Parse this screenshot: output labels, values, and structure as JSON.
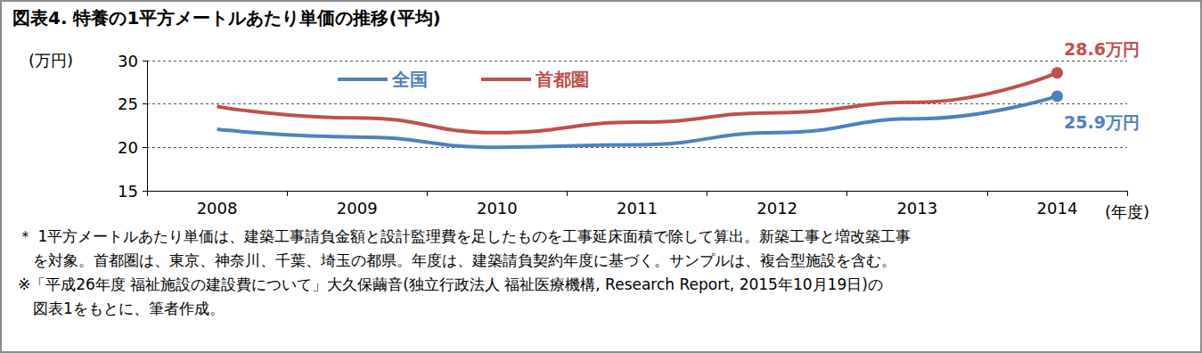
{
  "chart_data": {
    "type": "line",
    "title": "図表4. 特養の1平方メートルあたり単価の推移(平均)",
    "y_label": "(万円)",
    "x_label": "(年度)",
    "categories": [
      "2008",
      "2009",
      "2010",
      "2011",
      "2012",
      "2013",
      "2014"
    ],
    "series": [
      {
        "name": "全国",
        "color": "#4f81bd",
        "values": [
          22.1,
          21.2,
          20.0,
          20.3,
          21.7,
          23.3,
          25.9
        ]
      },
      {
        "name": "首都圏",
        "color": "#c0504d",
        "values": [
          24.7,
          23.4,
          21.7,
          22.9,
          24.0,
          25.2,
          28.6
        ]
      }
    ],
    "annotations": [
      {
        "text": "28.6万円",
        "series": "首都圏",
        "category": "2014"
      },
      {
        "text": "25.9万円",
        "series": "全国",
        "category": "2014"
      }
    ],
    "ylim": [
      15,
      30
    ],
    "yticks": [
      15,
      20,
      25,
      30
    ],
    "grid": true,
    "legend": "top",
    "notes": [
      "＊ 1平方メートルあたり単価は、建築工事請負金額と設計監理費を足したものを工事延床面積で除して算出。新築工事と増改築工事",
      "　を対象。首都圏は、東京、神奈川、千葉、埼玉の都県。年度は、建築請負契約年度に基づく。サンプルは、複合型施設を含む。",
      "※「平成26年度 福祉施設の建設費について」大久保繭音(独立行政法人 福祉医療機構, Research Report, 2015年10月19日)の",
      "　図表1をもとに、筆者作成。"
    ]
  }
}
